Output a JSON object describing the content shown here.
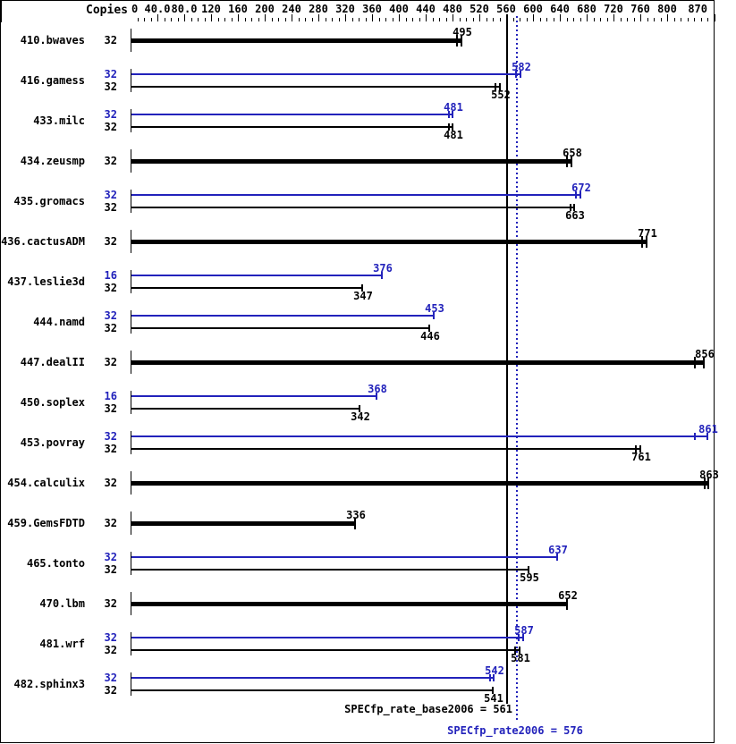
{
  "header": {
    "copies_label": "Copies"
  },
  "colors": {
    "peak_blue": "#2222bb",
    "base_black": "#000000",
    "background": "#ffffff"
  },
  "axis": {
    "tick_values": [
      0,
      40,
      80,
      120,
      160,
      200,
      240,
      280,
      320,
      360,
      400,
      440,
      480,
      520,
      560,
      600,
      640,
      680,
      720,
      760,
      800,
      870
    ],
    "tick_labels": [
      "0",
      "40.0",
      "80.0",
      "120",
      "160",
      "200",
      "240",
      "280",
      "320",
      "360",
      "400",
      "440",
      "480",
      "520",
      "560",
      "600",
      "640",
      "680",
      "720",
      "760",
      "800",
      "870"
    ],
    "minor_tick_step": 10,
    "max_value": 870
  },
  "reference_lines": {
    "base": {
      "value": 561,
      "style": "solid",
      "color": "#000000"
    },
    "peak": {
      "value": 576,
      "style": "dotted",
      "color": "#2222bb"
    }
  },
  "footer": {
    "base_label": "SPECfp_rate_base2006 = 561",
    "peak_label": "SPECfp_rate2006 = 576"
  },
  "chart_data": {
    "type": "bar",
    "orientation": "horizontal",
    "xlim": [
      0,
      871
    ],
    "grid": false,
    "copies_column_header": "Copies",
    "base_result": 561,
    "peak_result": 576,
    "benchmarks": [
      {
        "name": "410.bwaves",
        "bars": [
          {
            "run": "base",
            "bold": true,
            "copies": 32,
            "value": 495,
            "marker": "double",
            "spread": 5,
            "label_pos": "above"
          }
        ]
      },
      {
        "name": "416.gamess",
        "bars": [
          {
            "run": "peak",
            "bold": false,
            "copies": 32,
            "value": 582,
            "marker": "double",
            "spread": 5,
            "label_pos": "above"
          },
          {
            "run": "base",
            "bold": false,
            "copies": 32,
            "value": 552,
            "marker": "double",
            "spread": 5,
            "label_pos": "below"
          }
        ]
      },
      {
        "name": "433.milc",
        "bars": [
          {
            "run": "peak",
            "bold": false,
            "copies": 32,
            "value": 481,
            "marker": "double",
            "spread": 4,
            "label_pos": "above"
          },
          {
            "run": "base",
            "bold": false,
            "copies": 32,
            "value": 481,
            "marker": "double",
            "spread": 4,
            "label_pos": "below"
          }
        ]
      },
      {
        "name": "434.zeusmp",
        "bars": [
          {
            "run": "base",
            "bold": true,
            "copies": 32,
            "value": 658,
            "marker": "double",
            "spread": 5,
            "label_pos": "above"
          }
        ]
      },
      {
        "name": "435.gromacs",
        "bars": [
          {
            "run": "peak",
            "bold": false,
            "copies": 32,
            "value": 672,
            "marker": "double",
            "spread": 5,
            "label_pos": "above"
          },
          {
            "run": "base",
            "bold": false,
            "copies": 32,
            "value": 663,
            "marker": "double",
            "spread": 4,
            "label_pos": "below"
          }
        ]
      },
      {
        "name": "436.cactusADM",
        "bars": [
          {
            "run": "base",
            "bold": true,
            "copies": 32,
            "value": 771,
            "marker": "double",
            "spread": 5,
            "label_pos": "above"
          }
        ]
      },
      {
        "name": "437.leslie3d",
        "bars": [
          {
            "run": "peak",
            "bold": false,
            "copies": 16,
            "value": 376,
            "marker": "single",
            "spread": 0,
            "label_pos": "above"
          },
          {
            "run": "base",
            "bold": false,
            "copies": 32,
            "value": 347,
            "marker": "single",
            "spread": 0,
            "label_pos": "below"
          }
        ]
      },
      {
        "name": "444.namd",
        "bars": [
          {
            "run": "peak",
            "bold": false,
            "copies": 32,
            "value": 453,
            "marker": "single",
            "spread": 0,
            "label_pos": "above"
          },
          {
            "run": "base",
            "bold": false,
            "copies": 32,
            "value": 446,
            "marker": "single",
            "spread": 0,
            "label_pos": "below"
          }
        ]
      },
      {
        "name": "447.dealII",
        "bars": [
          {
            "run": "base",
            "bold": true,
            "copies": 32,
            "value": 856,
            "marker": "double",
            "spread": 10,
            "label_pos": "above"
          }
        ]
      },
      {
        "name": "450.soplex",
        "bars": [
          {
            "run": "peak",
            "bold": false,
            "copies": 16,
            "value": 368,
            "marker": "single",
            "spread": 0,
            "label_pos": "above"
          },
          {
            "run": "base",
            "bold": false,
            "copies": 32,
            "value": 342,
            "marker": "single",
            "spread": 0,
            "label_pos": "below"
          }
        ]
      },
      {
        "name": "453.povray",
        "bars": [
          {
            "run": "peak",
            "bold": false,
            "copies": 32,
            "value": 861,
            "marker": "double",
            "spread": 14,
            "label_pos": "above"
          },
          {
            "run": "base",
            "bold": false,
            "copies": 32,
            "value": 761,
            "marker": "double",
            "spread": 5,
            "label_pos": "below"
          }
        ]
      },
      {
        "name": "454.calculix",
        "bars": [
          {
            "run": "base",
            "bold": true,
            "copies": 32,
            "value": 863,
            "marker": "double",
            "spread": 4,
            "label_pos": "above"
          }
        ]
      },
      {
        "name": "459.GemsFDTD",
        "bars": [
          {
            "run": "base",
            "bold": true,
            "copies": 32,
            "value": 336,
            "marker": "single",
            "spread": 0,
            "label_pos": "above"
          }
        ]
      },
      {
        "name": "465.tonto",
        "bars": [
          {
            "run": "peak",
            "bold": false,
            "copies": 32,
            "value": 637,
            "marker": "single",
            "spread": 0,
            "label_pos": "above"
          },
          {
            "run": "base",
            "bold": false,
            "copies": 32,
            "value": 595,
            "marker": "single",
            "spread": 0,
            "label_pos": "below"
          }
        ]
      },
      {
        "name": "470.lbm",
        "bars": [
          {
            "run": "base",
            "bold": true,
            "copies": 32,
            "value": 652,
            "marker": "single",
            "spread": 0,
            "label_pos": "above"
          }
        ]
      },
      {
        "name": "481.wrf",
        "bars": [
          {
            "run": "peak",
            "bold": false,
            "copies": 32,
            "value": 587,
            "marker": "double",
            "spread": 5,
            "label_pos": "above"
          },
          {
            "run": "base",
            "bold": false,
            "copies": 32,
            "value": 581,
            "marker": "double",
            "spread": 5,
            "label_pos": "below"
          }
        ]
      },
      {
        "name": "482.sphinx3",
        "bars": [
          {
            "run": "peak",
            "bold": false,
            "copies": 32,
            "value": 542,
            "marker": "double",
            "spread": 4,
            "label_pos": "above"
          },
          {
            "run": "base",
            "bold": false,
            "copies": 32,
            "value": 541,
            "marker": "single",
            "spread": 0,
            "label_pos": "below"
          }
        ]
      }
    ]
  }
}
